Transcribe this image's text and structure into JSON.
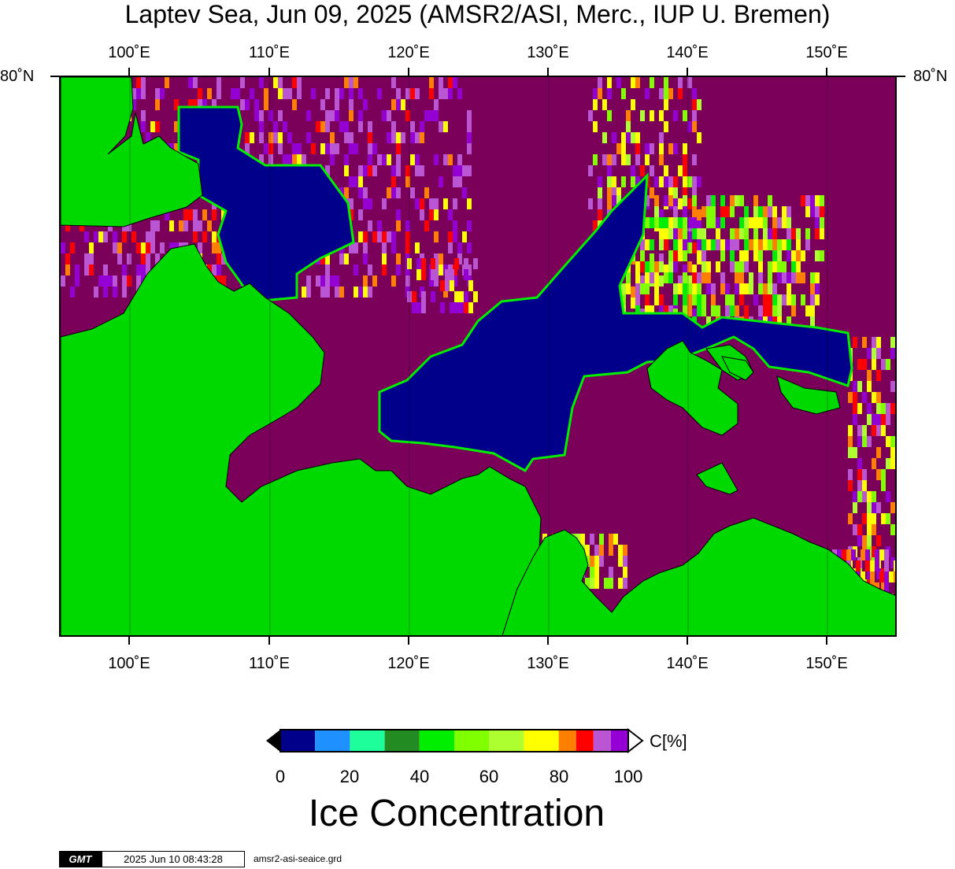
{
  "title": "Laptev Sea, Jun 09, 2025 (AMSR2/ASI, Merc., IUP U. Bremen)",
  "map": {
    "lon_labels": [
      "100˚E",
      "110˚E",
      "120˚E",
      "130˚E",
      "140˚E",
      "150˚E"
    ],
    "lat_label_left": "80˚N",
    "lat_label_right": "80˚N",
    "colors": {
      "open_water": "#7a0059",
      "land": "#00d900",
      "low_ice": "#00008b"
    }
  },
  "colorbar": {
    "ticks": [
      "0",
      "20",
      "40",
      "60",
      "80",
      "100"
    ],
    "unit": "C[%]",
    "title": "Ice Concentration",
    "colors": [
      "#00008b",
      "#1e90ff",
      "#1eff9c",
      "#228b22",
      "#00ee00",
      "#7fff00",
      "#adff2f",
      "#ffff00",
      "#ff8000",
      "#ff0000",
      "#ba55d3",
      "#9400d3"
    ]
  },
  "footer": {
    "logo": "GMT",
    "timestamp": "2025 Jun 10 08:43:28",
    "filename": "amsr2-asi-seaice.grd"
  }
}
